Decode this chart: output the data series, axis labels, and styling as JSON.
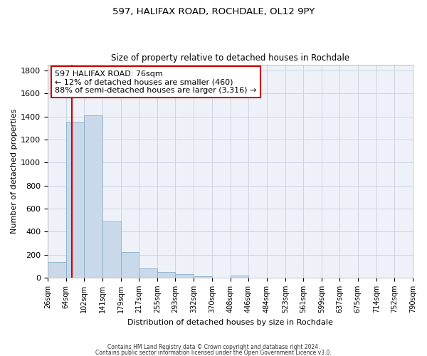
{
  "title1": "597, HALIFAX ROAD, ROCHDALE, OL12 9PY",
  "title2": "Size of property relative to detached houses in Rochdale",
  "xlabel": "Distribution of detached houses by size in Rochdale",
  "ylabel": "Number of detached properties",
  "footer1": "Contains HM Land Registry data © Crown copyright and database right 2024.",
  "footer2": "Contains public sector information licensed under the Open Government Licence v3.0.",
  "bar_color": "#c9d9ea",
  "bar_edge_color": "#8ab0cc",
  "bar_bins": [
    26,
    64,
    102,
    141,
    179,
    217,
    255,
    293,
    332,
    370,
    408,
    446,
    484,
    523,
    561,
    599,
    637,
    675,
    714,
    752,
    790
  ],
  "bar_values": [
    135,
    1355,
    1410,
    490,
    225,
    80,
    48,
    28,
    15,
    0,
    20,
    0,
    0,
    0,
    0,
    0,
    0,
    0,
    0,
    0
  ],
  "property_size": 76,
  "property_line_color": "#cc0000",
  "ann_line1": "597 HALIFAX ROAD: 76sqm",
  "ann_line2": "← 12% of detached houses are smaller (460)",
  "ann_line3": "88% of semi-detached houses are larger (3,316) →",
  "annotation_box_color": "#cc0000",
  "ylim": [
    0,
    1850
  ],
  "yticks": [
    0,
    200,
    400,
    600,
    800,
    1000,
    1200,
    1400,
    1600,
    1800
  ],
  "background_color": "#eef2f8",
  "grid_color": "#c8d0dc"
}
